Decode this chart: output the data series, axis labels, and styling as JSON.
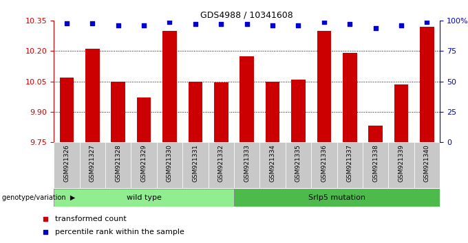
{
  "title": "GDS4988 / 10341608",
  "categories": [
    "GSM921326",
    "GSM921327",
    "GSM921328",
    "GSM921329",
    "GSM921330",
    "GSM921331",
    "GSM921332",
    "GSM921333",
    "GSM921334",
    "GSM921335",
    "GSM921336",
    "GSM921337",
    "GSM921338",
    "GSM921339",
    "GSM921340"
  ],
  "bar_values": [
    10.07,
    10.21,
    10.05,
    9.97,
    10.3,
    10.05,
    10.045,
    10.175,
    10.048,
    10.06,
    10.3,
    10.19,
    9.83,
    10.035,
    10.32
  ],
  "percentile_values": [
    98,
    98,
    96,
    96,
    99,
    97,
    97,
    97,
    96,
    96,
    99,
    97,
    94,
    96,
    99
  ],
  "bar_color": "#CC0000",
  "percentile_color": "#0000CC",
  "ylim_left": [
    9.75,
    10.35
  ],
  "ylim_right": [
    0,
    100
  ],
  "yticks_left": [
    9.75,
    9.9,
    10.05,
    10.2,
    10.35
  ],
  "yticks_right": [
    0,
    25,
    50,
    75,
    100
  ],
  "ytick_labels_right": [
    "0",
    "25",
    "50",
    "75",
    "100%"
  ],
  "grid_values": [
    9.9,
    10.05,
    10.2
  ],
  "wt_count": 7,
  "mut_count": 8,
  "wild_type_label": "wild type",
  "mutation_label": "Srlp5 mutation",
  "genotype_label": "genotype/variation",
  "legend_bar_label": "transformed count",
  "legend_percentile_label": "percentile rank within the sample",
  "bg_color": "#ffffff",
  "bar_color_hex": "#CC0000",
  "percentile_color_hex": "#0000CC",
  "bar_width": 0.55,
  "tick_bg_color": "#c8c8c8",
  "wt_color": "#90EE90",
  "mut_color": "#4CBB4C"
}
